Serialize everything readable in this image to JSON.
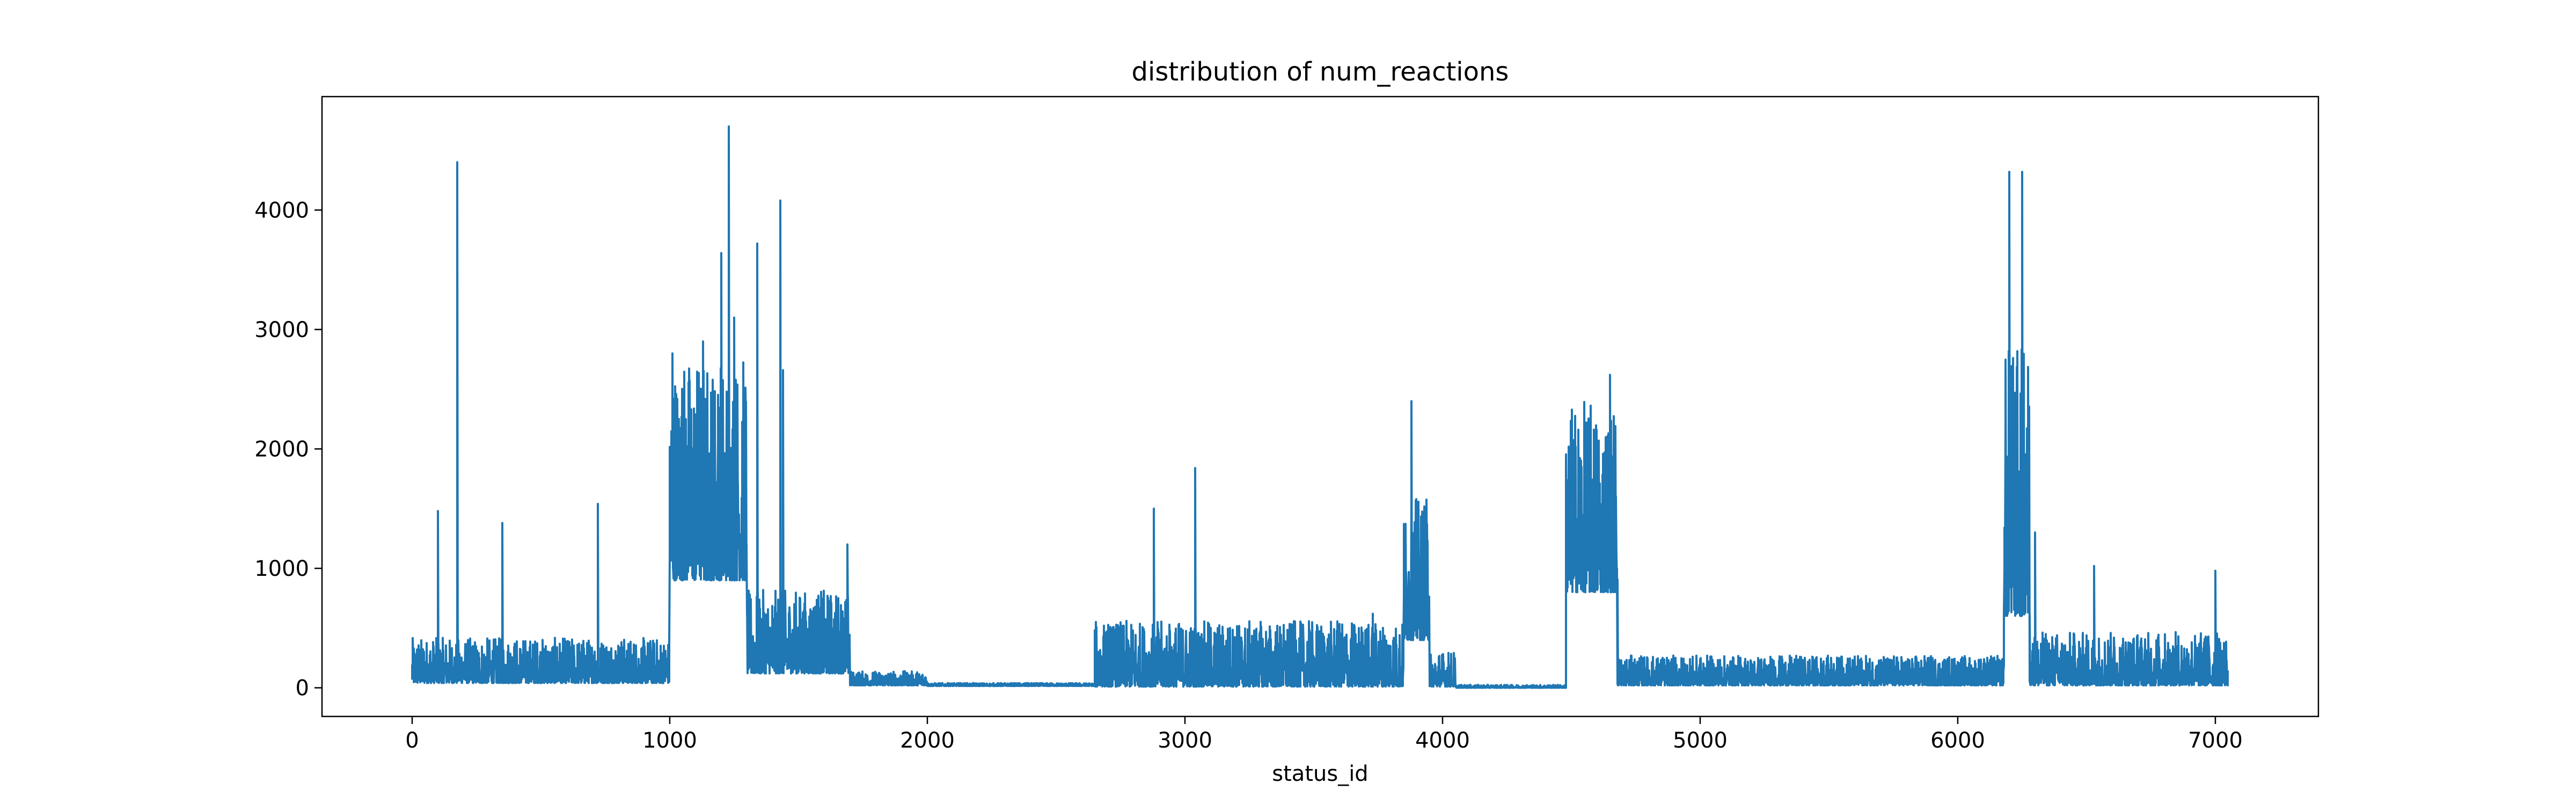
{
  "chart_data": {
    "type": "line",
    "title": "distribution of num_reactions",
    "xlabel": "status_id",
    "ylabel": "",
    "xlim": [
      -350,
      7400
    ],
    "ylim": [
      -240,
      4950
    ],
    "grid": false,
    "legend": "none",
    "x_ticks": [
      0,
      1000,
      2000,
      3000,
      4000,
      5000,
      6000,
      7000
    ],
    "x_tick_labels": [
      "0",
      "1000",
      "2000",
      "3000",
      "4000",
      "5000",
      "6000",
      "7000"
    ],
    "y_ticks": [
      0,
      1000,
      2000,
      3000,
      4000
    ],
    "y_tick_labels": [
      "0",
      "1000",
      "2000",
      "3000",
      "4000"
    ],
    "series": [
      {
        "name": "num_reactions",
        "color": "#1f77b4",
        "num_points": 7050,
        "segments": [
          {
            "range": [
              0,
              1000
            ],
            "base": 40,
            "amp": 380
          },
          {
            "range": [
              1000,
              1300
            ],
            "base": 900,
            "amp": 1900
          },
          {
            "range": [
              1300,
              1700
            ],
            "base": 120,
            "amp": 700
          },
          {
            "range": [
              1700,
              2000
            ],
            "base": 20,
            "amp": 120
          },
          {
            "range": [
              2000,
              2650
            ],
            "base": 15,
            "amp": 25
          },
          {
            "range": [
              2650,
              3850
            ],
            "base": 10,
            "amp": 550
          },
          {
            "range": [
              3850,
              3950
            ],
            "base": 400,
            "amp": 1200
          },
          {
            "range": [
              3950,
              4050
            ],
            "base": 10,
            "amp": 300
          },
          {
            "range": [
              4050,
              4480
            ],
            "base": 0,
            "amp": 25
          },
          {
            "range": [
              4480,
              4680
            ],
            "base": 800,
            "amp": 1600
          },
          {
            "range": [
              4680,
              6180
            ],
            "base": 20,
            "amp": 250
          },
          {
            "range": [
              6180,
              6280
            ],
            "base": 600,
            "amp": 2300
          },
          {
            "range": [
              6280,
              7050
            ],
            "base": 20,
            "amp": 450
          }
        ],
        "peaks": [
          [
            100,
            1480
          ],
          [
            175,
            4400
          ],
          [
            350,
            1380
          ],
          [
            720,
            1540
          ],
          [
            1010,
            2800
          ],
          [
            1130,
            2900
          ],
          [
            1200,
            3640
          ],
          [
            1230,
            4700
          ],
          [
            1250,
            3100
          ],
          [
            1340,
            3720
          ],
          [
            1430,
            4080
          ],
          [
            1440,
            2660
          ],
          [
            1690,
            1200
          ],
          [
            2880,
            1500
          ],
          [
            3040,
            1840
          ],
          [
            3730,
            620
          ],
          [
            3880,
            2400
          ],
          [
            3920,
            1380
          ],
          [
            4560,
            2220
          ],
          [
            4650,
            2620
          ],
          [
            6200,
            4320
          ],
          [
            6250,
            4320
          ],
          [
            6300,
            1300
          ],
          [
            6530,
            1020
          ],
          [
            7000,
            980
          ]
        ]
      }
    ]
  }
}
